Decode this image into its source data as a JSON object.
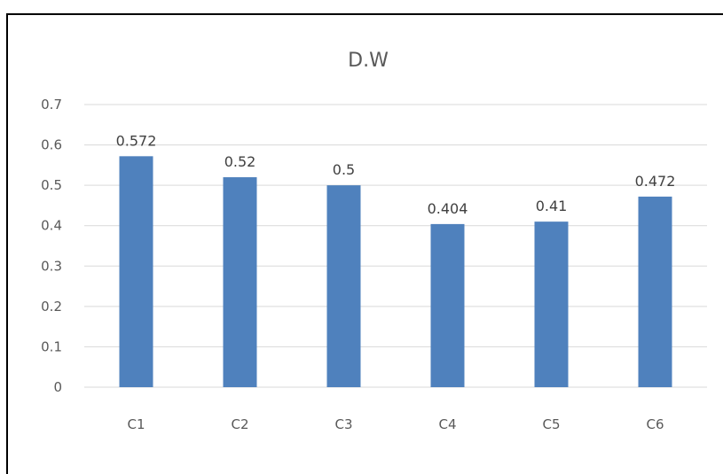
{
  "chart_data": {
    "type": "bar",
    "title": "D.W",
    "xlabel": "",
    "ylabel": "",
    "categories": [
      "C1",
      "C2",
      "C3",
      "C4",
      "C5",
      "C6"
    ],
    "values": [
      0.572,
      0.52,
      0.5,
      0.404,
      0.41,
      0.472
    ],
    "data_labels": [
      "0.572",
      "0.52",
      "0.5",
      "0.404",
      "0.41",
      "0.472"
    ],
    "ylim": [
      0,
      0.7
    ],
    "y_ticks": [
      "0",
      "0.1",
      "0.2",
      "0.3",
      "0.4",
      "0.5",
      "0.6",
      "0.7"
    ],
    "grid": true,
    "legend": "none",
    "bar_color": "#4f81bd"
  }
}
